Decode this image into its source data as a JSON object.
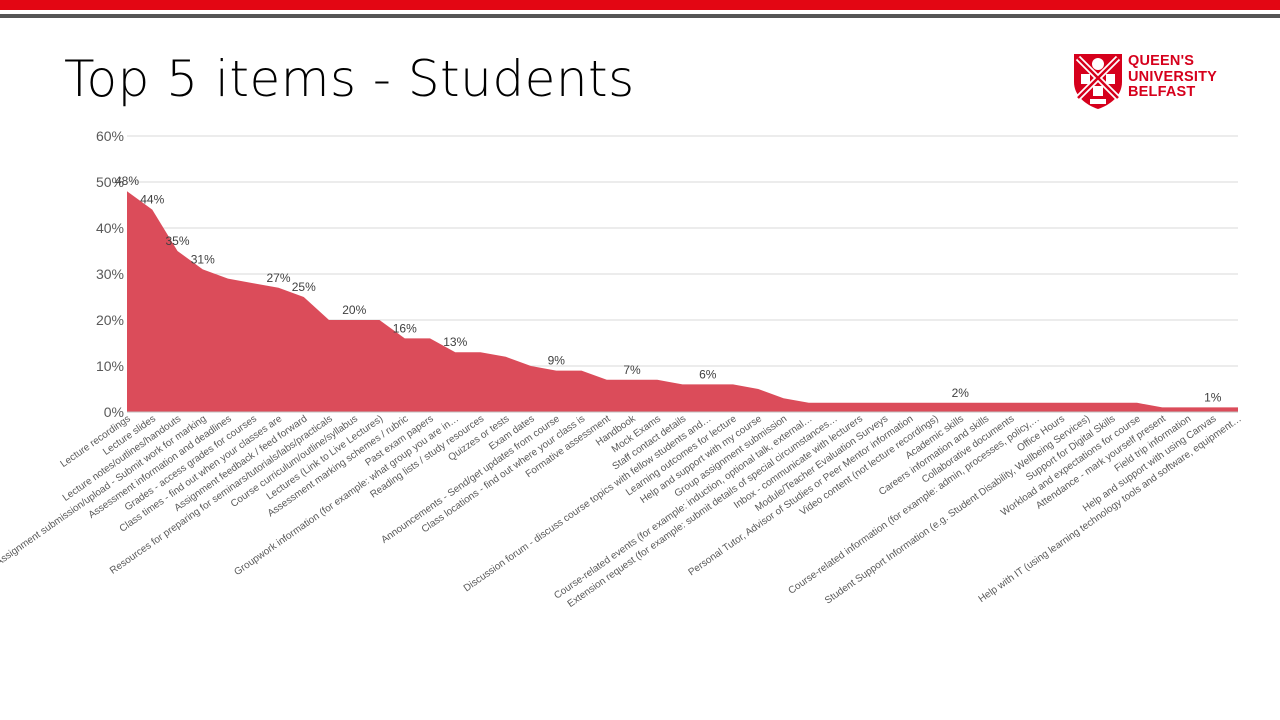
{
  "slide": {
    "title": "Top 5 items - Students",
    "accent_color": "#e30613",
    "stripe_color": "#555555"
  },
  "logo": {
    "line1": "QUEEN'S",
    "line2": "UNIVERSITY",
    "line3": "BELFAST",
    "color": "#d6001c"
  },
  "chart_data": {
    "type": "area",
    "title": "",
    "xlabel": "",
    "ylabel": "",
    "ylim": [
      0,
      60
    ],
    "yticks": [
      "0%",
      "10%",
      "20%",
      "30%",
      "40%",
      "50%",
      "60%"
    ],
    "grid": true,
    "legend": "none",
    "fill_color": "#db4c5a",
    "categories": [
      "Lecture recordings",
      "Lecture slides",
      "Lecture notes/outlines/handouts",
      "Assignment submission/upload - Submit work for marking",
      "Assessment information and deadlines",
      "Grades - access grades for courses",
      "Class times - find out when your classes are",
      "Assignment feedback / feed forward",
      "Resources for preparing for seminars/tutorials/labs/practicals",
      "Course curriculum/outline/syllabus",
      "Lectures (Link to Live Lectures)",
      "Assessment marking schemes / rubric",
      "Past exam papers",
      "Groupwork information (for example: what group you are in…",
      "Reading lists / study resources",
      "Quizzes or tests",
      "Exam dates",
      "Announcements - Send/get updates from course",
      "Class locations - find out where your class is",
      "Formative assessment",
      "Handbook",
      "Mock Exams",
      "Staff contact details",
      "Discussion forum - discuss course topics with fellow students and…",
      "Learning outcomes for lecture",
      "Help and support with my course",
      "Group assignment submission",
      "Course-related events (for example: induction, optional talk, external…",
      "Extension request (for example: submit details of special circumstances…",
      "Inbox - communicate with lecturers",
      "Module/Teacher Evaluation Surveys",
      "Personal Tutor, Advisor of Studies or Peer Mentor information",
      "Video content (not lecture recordings)",
      "Academic skills",
      "Careers information and skills",
      "Collaborative documents",
      "Course-related information (for example: admin, processes, policy,…",
      "Office Hours",
      "Student Support Information (e.g. Student Disability, Wellbeing Services)",
      "Support for Digital Skills",
      "Workload and expectations for course",
      "Attendance - mark yourself present",
      "Field trip information",
      "Help and support with using Canvas",
      "Help with IT (using learning technology tools and software, equipment…"
    ],
    "values": [
      48,
      44,
      35,
      31,
      29,
      28,
      27,
      25,
      20,
      20,
      20,
      16,
      16,
      13,
      13,
      12,
      10,
      9,
      9,
      7,
      7,
      7,
      6,
      6,
      6,
      5,
      3,
      2,
      2,
      2,
      2,
      2,
      2,
      2,
      2,
      2,
      2,
      2,
      2,
      2,
      2,
      1,
      1,
      1,
      1
    ],
    "data_labels": [
      {
        "index": 0,
        "text": "48%"
      },
      {
        "index": 1,
        "text": "44%"
      },
      {
        "index": 2,
        "text": "35%"
      },
      {
        "index": 3,
        "text": "31%"
      },
      {
        "index": 6,
        "text": "27%"
      },
      {
        "index": 7,
        "text": "25%"
      },
      {
        "index": 9,
        "text": "20%"
      },
      {
        "index": 11,
        "text": "16%"
      },
      {
        "index": 13,
        "text": "13%"
      },
      {
        "index": 17,
        "text": "9%"
      },
      {
        "index": 20,
        "text": "7%"
      },
      {
        "index": 23,
        "text": "6%"
      },
      {
        "index": 33,
        "text": "2%"
      },
      {
        "index": 43,
        "text": "1%"
      }
    ]
  }
}
